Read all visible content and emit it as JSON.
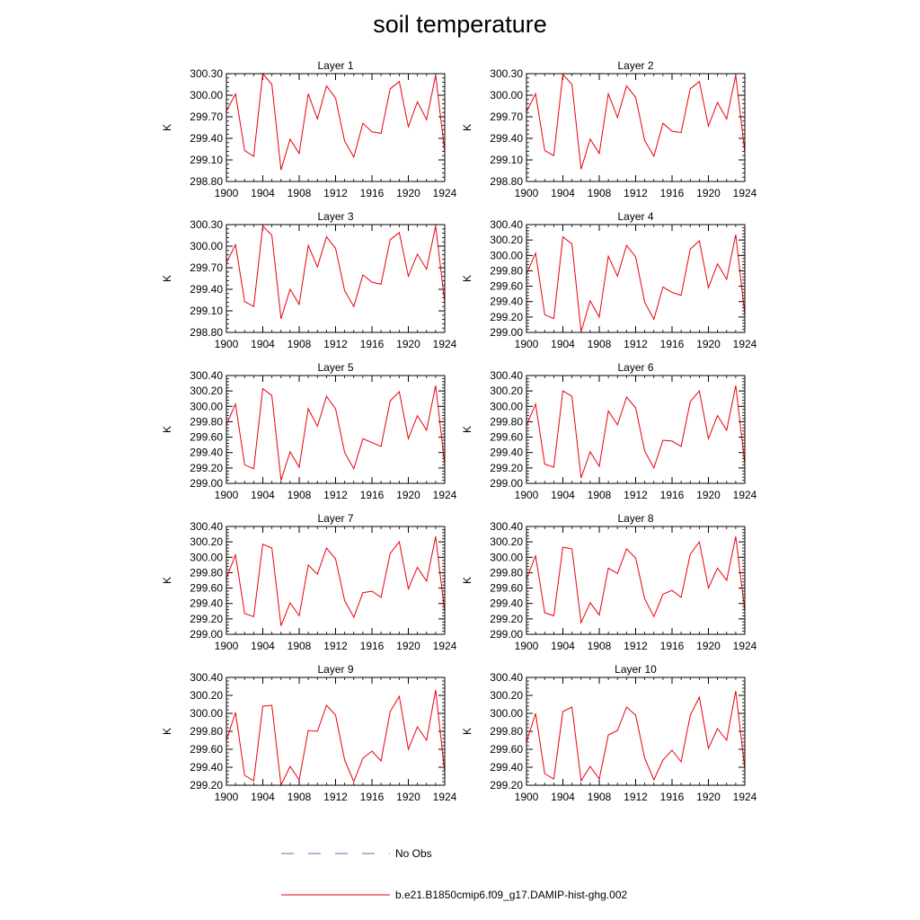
{
  "page": {
    "title": "soil temperature"
  },
  "colors": {
    "model_line": "#e8000b",
    "obs_line": "#6a6ac8",
    "axis": "#000000"
  },
  "legend": {
    "entries": [
      {
        "label": "No Obs",
        "style": "dashed",
        "color": "#6a6ac8"
      },
      {
        "label": "b.e21.B1850cmip6.f09_g17.DAMIP-hist-ghg.002",
        "style": "solid",
        "color": "#e8000b"
      }
    ]
  },
  "chart_data": [
    {
      "type": "line",
      "title": "Layer 1",
      "ylabel": "K",
      "xlim": [
        1900,
        1924
      ],
      "ylim": [
        298.8,
        300.3
      ],
      "xticks": [
        "1900",
        "1904",
        "1908",
        "1912",
        "1916",
        "1920",
        "1924"
      ],
      "yticks": [
        "298.80",
        "299.10",
        "299.40",
        "299.70",
        "300.00",
        "300.30"
      ],
      "series": [
        {
          "x": [
            1900,
            1901,
            1902,
            1903,
            1904,
            1905,
            1906,
            1907,
            1908,
            1909,
            1910,
            1911,
            1912,
            1913,
            1914,
            1915,
            1916,
            1917,
            1918,
            1919,
            1920,
            1921,
            1922,
            1923,
            1924
          ],
          "y": [
            299.78,
            300.02,
            299.23,
            299.15,
            300.3,
            300.15,
            298.96,
            299.39,
            299.19,
            300.02,
            299.67,
            300.13,
            299.96,
            299.36,
            299.14,
            299.61,
            299.49,
            299.47,
            300.09,
            300.19,
            299.56,
            299.91,
            299.66,
            300.28,
            299.21
          ]
        }
      ]
    },
    {
      "type": "line",
      "title": "Layer 2",
      "ylabel": "K",
      "xlim": [
        1900,
        1924
      ],
      "ylim": [
        298.8,
        300.3
      ],
      "xticks": [
        "1900",
        "1904",
        "1908",
        "1912",
        "1916",
        "1920",
        "1924"
      ],
      "yticks": [
        "298.80",
        "299.10",
        "299.40",
        "299.70",
        "300.00",
        "300.30"
      ],
      "series": [
        {
          "x": [
            1900,
            1901,
            1902,
            1903,
            1904,
            1905,
            1906,
            1907,
            1908,
            1909,
            1910,
            1911,
            1912,
            1913,
            1914,
            1915,
            1916,
            1917,
            1918,
            1919,
            1920,
            1921,
            1922,
            1923,
            1924
          ],
          "y": [
            299.77,
            300.02,
            299.23,
            299.16,
            300.29,
            300.15,
            298.97,
            299.39,
            299.19,
            300.02,
            299.69,
            300.13,
            299.97,
            299.37,
            299.15,
            299.61,
            299.5,
            299.48,
            300.09,
            300.19,
            299.57,
            299.9,
            299.67,
            300.28,
            299.21
          ]
        }
      ]
    },
    {
      "type": "line",
      "title": "Layer 3",
      "ylabel": "K",
      "xlim": [
        1900,
        1924
      ],
      "ylim": [
        298.8,
        300.3
      ],
      "xticks": [
        "1900",
        "1904",
        "1908",
        "1912",
        "1916",
        "1920",
        "1924"
      ],
      "yticks": [
        "298.80",
        "299.10",
        "299.40",
        "299.70",
        "300.00",
        "300.30"
      ],
      "series": [
        {
          "x": [
            1900,
            1901,
            1902,
            1903,
            1904,
            1905,
            1906,
            1907,
            1908,
            1909,
            1910,
            1911,
            1912,
            1913,
            1914,
            1915,
            1916,
            1917,
            1918,
            1919,
            1920,
            1921,
            1922,
            1923,
            1924
          ],
          "y": [
            299.77,
            300.02,
            299.23,
            299.16,
            300.28,
            300.15,
            298.99,
            299.4,
            299.19,
            300.01,
            299.71,
            300.13,
            299.97,
            299.38,
            299.16,
            299.6,
            299.5,
            299.47,
            300.09,
            300.19,
            299.58,
            299.89,
            299.68,
            300.28,
            299.22
          ]
        }
      ]
    },
    {
      "type": "line",
      "title": "Layer 4",
      "ylabel": "K",
      "xlim": [
        1900,
        1924
      ],
      "ylim": [
        299.0,
        300.4
      ],
      "xticks": [
        "1900",
        "1904",
        "1908",
        "1912",
        "1916",
        "1920",
        "1924"
      ],
      "yticks": [
        "299.00",
        "299.20",
        "299.40",
        "299.60",
        "299.80",
        "300.00",
        "300.20",
        "300.40"
      ],
      "series": [
        {
          "x": [
            1900,
            1901,
            1902,
            1903,
            1904,
            1905,
            1906,
            1907,
            1908,
            1909,
            1910,
            1911,
            1912,
            1913,
            1914,
            1915,
            1916,
            1917,
            1918,
            1919,
            1920,
            1921,
            1922,
            1923,
            1924
          ],
          "y": [
            299.76,
            300.03,
            299.23,
            299.18,
            300.24,
            300.15,
            299.01,
            299.41,
            299.2,
            299.99,
            299.73,
            300.13,
            299.98,
            299.39,
            299.17,
            299.59,
            299.52,
            299.48,
            300.08,
            300.19,
            299.58,
            299.89,
            299.69,
            300.27,
            299.23
          ]
        }
      ]
    },
    {
      "type": "line",
      "title": "Layer 5",
      "ylabel": "K",
      "xlim": [
        1900,
        1924
      ],
      "ylim": [
        299.0,
        300.4
      ],
      "xticks": [
        "1900",
        "1904",
        "1908",
        "1912",
        "1916",
        "1920",
        "1924"
      ],
      "yticks": [
        "299.00",
        "299.20",
        "299.40",
        "299.60",
        "299.80",
        "300.00",
        "300.20",
        "300.40"
      ],
      "series": [
        {
          "x": [
            1900,
            1901,
            1902,
            1903,
            1904,
            1905,
            1906,
            1907,
            1908,
            1909,
            1910,
            1911,
            1912,
            1913,
            1914,
            1915,
            1916,
            1917,
            1918,
            1919,
            1920,
            1921,
            1922,
            1923,
            1924
          ],
          "y": [
            299.76,
            300.03,
            299.24,
            299.19,
            300.23,
            300.14,
            299.04,
            299.41,
            299.21,
            299.97,
            299.74,
            300.13,
            299.97,
            299.4,
            299.19,
            299.58,
            299.53,
            299.48,
            300.07,
            300.19,
            299.58,
            299.88,
            299.69,
            300.27,
            299.24
          ]
        }
      ]
    },
    {
      "type": "line",
      "title": "Layer 6",
      "ylabel": "K",
      "xlim": [
        1900,
        1924
      ],
      "ylim": [
        299.0,
        300.4
      ],
      "xticks": [
        "1900",
        "1904",
        "1908",
        "1912",
        "1916",
        "1920",
        "1924"
      ],
      "yticks": [
        "299.00",
        "299.20",
        "299.40",
        "299.60",
        "299.80",
        "300.00",
        "300.20",
        "300.40"
      ],
      "series": [
        {
          "x": [
            1900,
            1901,
            1902,
            1903,
            1904,
            1905,
            1906,
            1907,
            1908,
            1909,
            1910,
            1911,
            1912,
            1913,
            1914,
            1915,
            1916,
            1917,
            1918,
            1919,
            1920,
            1921,
            1922,
            1923,
            1924
          ],
          "y": [
            299.75,
            300.03,
            299.25,
            299.21,
            300.2,
            300.13,
            299.07,
            299.41,
            299.22,
            299.94,
            299.76,
            300.12,
            299.98,
            299.42,
            299.2,
            299.56,
            299.55,
            299.48,
            300.06,
            300.2,
            299.58,
            299.88,
            299.69,
            300.27,
            299.25
          ]
        }
      ]
    },
    {
      "type": "line",
      "title": "Layer 7",
      "ylabel": "K",
      "xlim": [
        1900,
        1924
      ],
      "ylim": [
        299.0,
        300.4
      ],
      "xticks": [
        "1900",
        "1904",
        "1908",
        "1912",
        "1916",
        "1920",
        "1924"
      ],
      "yticks": [
        "299.00",
        "299.20",
        "299.40",
        "299.60",
        "299.80",
        "300.00",
        "300.20",
        "300.40"
      ],
      "series": [
        {
          "x": [
            1900,
            1901,
            1902,
            1903,
            1904,
            1905,
            1906,
            1907,
            1908,
            1909,
            1910,
            1911,
            1912,
            1913,
            1914,
            1915,
            1916,
            1917,
            1918,
            1919,
            1920,
            1921,
            1922,
            1923,
            1924
          ],
          "y": [
            299.73,
            300.03,
            299.27,
            299.23,
            300.17,
            300.12,
            299.11,
            299.41,
            299.24,
            299.9,
            299.78,
            300.12,
            299.98,
            299.44,
            299.22,
            299.54,
            299.56,
            299.48,
            300.05,
            300.2,
            299.59,
            299.87,
            299.69,
            300.27,
            299.28
          ]
        }
      ]
    },
    {
      "type": "line",
      "title": "Layer 8",
      "ylabel": "K",
      "xlim": [
        1900,
        1924
      ],
      "ylim": [
        299.0,
        300.4
      ],
      "xticks": [
        "1900",
        "1904",
        "1908",
        "1912",
        "1916",
        "1920",
        "1924"
      ],
      "yticks": [
        "299.00",
        "299.20",
        "299.40",
        "299.60",
        "299.80",
        "300.00",
        "300.20",
        "300.40"
      ],
      "series": [
        {
          "x": [
            1900,
            1901,
            1902,
            1903,
            1904,
            1905,
            1906,
            1907,
            1908,
            1909,
            1910,
            1911,
            1912,
            1913,
            1914,
            1915,
            1916,
            1917,
            1918,
            1919,
            1920,
            1921,
            1922,
            1923,
            1924
          ],
          "y": [
            299.72,
            300.02,
            299.28,
            299.24,
            300.13,
            300.11,
            299.15,
            299.41,
            299.25,
            299.86,
            299.79,
            300.11,
            299.99,
            299.46,
            299.23,
            299.52,
            299.57,
            299.48,
            300.04,
            300.2,
            299.6,
            299.86,
            299.7,
            300.27,
            299.3
          ]
        }
      ]
    },
    {
      "type": "line",
      "title": "Layer 9",
      "ylabel": "K",
      "xlim": [
        1900,
        1924
      ],
      "ylim": [
        299.2,
        300.4
      ],
      "xticks": [
        "1900",
        "1904",
        "1908",
        "1912",
        "1916",
        "1920",
        "1924"
      ],
      "yticks": [
        "299.20",
        "299.40",
        "299.60",
        "299.80",
        "300.00",
        "300.20",
        "300.40"
      ],
      "series": [
        {
          "x": [
            1900,
            1901,
            1902,
            1903,
            1904,
            1905,
            1906,
            1907,
            1908,
            1909,
            1910,
            1911,
            1912,
            1913,
            1914,
            1915,
            1916,
            1917,
            1918,
            1919,
            1920,
            1921,
            1922,
            1923,
            1924
          ],
          "y": [
            299.7,
            300.01,
            299.31,
            299.25,
            300.08,
            300.09,
            299.2,
            299.41,
            299.26,
            299.81,
            299.8,
            300.09,
            299.98,
            299.48,
            299.24,
            299.5,
            299.58,
            299.47,
            300.02,
            300.19,
            299.6,
            299.85,
            299.7,
            300.26,
            299.34
          ]
        }
      ]
    },
    {
      "type": "line",
      "title": "Layer 10",
      "ylabel": "K",
      "xlim": [
        1900,
        1924
      ],
      "ylim": [
        299.2,
        300.4
      ],
      "xticks": [
        "1900",
        "1904",
        "1908",
        "1912",
        "1916",
        "1920",
        "1924"
      ],
      "yticks": [
        "299.20",
        "299.40",
        "299.60",
        "299.80",
        "300.00",
        "300.20",
        "300.40"
      ],
      "series": [
        {
          "x": [
            1900,
            1901,
            1902,
            1903,
            1904,
            1905,
            1906,
            1907,
            1908,
            1909,
            1910,
            1911,
            1912,
            1913,
            1914,
            1915,
            1916,
            1917,
            1918,
            1919,
            1920,
            1921,
            1922,
            1923,
            1924
          ],
          "y": [
            299.68,
            300.0,
            299.33,
            299.27,
            300.02,
            300.07,
            299.25,
            299.41,
            299.27,
            299.76,
            299.81,
            300.07,
            299.98,
            299.5,
            299.26,
            299.48,
            299.59,
            299.46,
            299.98,
            300.18,
            299.61,
            299.83,
            299.7,
            300.25,
            299.38
          ]
        }
      ]
    }
  ]
}
